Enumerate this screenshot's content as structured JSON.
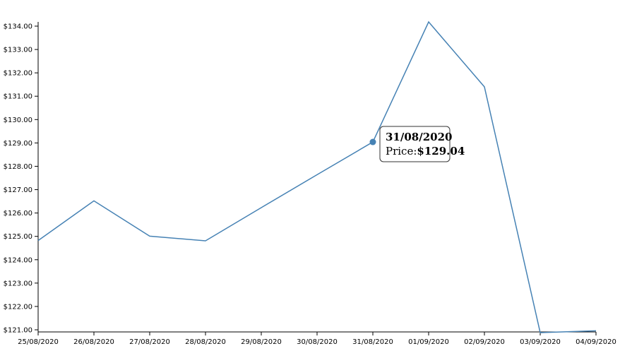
{
  "chart_data": {
    "type": "line",
    "title": "",
    "xlabel": "",
    "ylabel": "",
    "x": [
      "25/08/2020",
      "26/08/2020",
      "27/08/2020",
      "28/08/2020",
      "29/08/2020",
      "30/08/2020",
      "31/08/2020",
      "01/09/2020",
      "02/09/2020",
      "03/09/2020",
      "04/09/2020"
    ],
    "series": [
      {
        "values": [
          124.82,
          126.52,
          125.01,
          124.81,
          126.23,
          127.64,
          129.04,
          134.18,
          131.4,
          120.88,
          120.96
        ]
      }
    ],
    "ylim": [
      121.0,
      134.0
    ],
    "y_ticks": [
      "$121.00",
      "$122.00",
      "$123.00",
      "$124.00",
      "$125.00",
      "$126.00",
      "$127.00",
      "$128.00",
      "$129.00",
      "$130.00",
      "$131.00",
      "$132.00",
      "$133.00",
      "$134.00"
    ],
    "grid": false,
    "line_color": "#4682b4",
    "highlight_color": "#4682b4"
  },
  "tooltip": {
    "date": "31/08/2020",
    "price_label": "Price:",
    "price_value": "$129.04",
    "point_index": 6
  }
}
